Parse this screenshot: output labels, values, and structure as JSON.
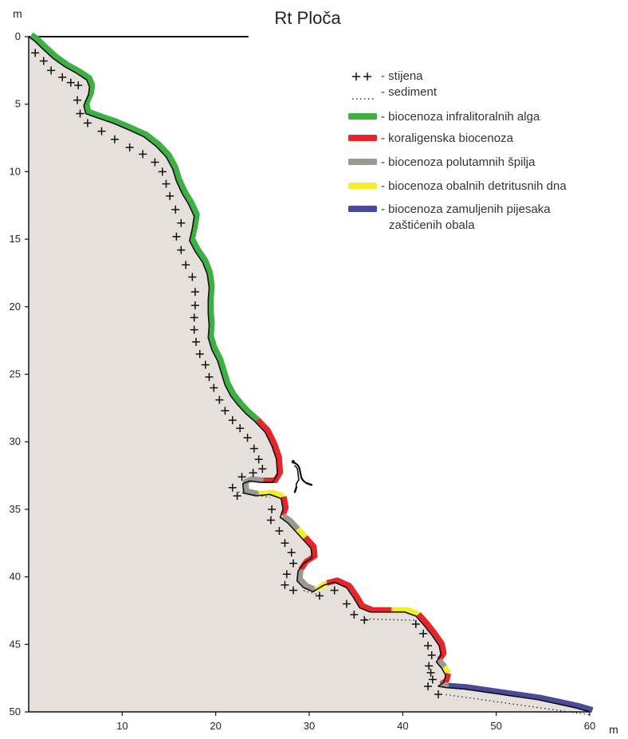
{
  "chart_data": {
    "type": "profile",
    "title": "Rt Ploča",
    "y_unit": "m",
    "x_unit": "m",
    "xlim": [
      0,
      60
    ],
    "ylim": [
      0,
      50
    ],
    "y_ticks": [
      0,
      5,
      10,
      15,
      20,
      25,
      30,
      35,
      40,
      45,
      50
    ],
    "x_ticks": [
      10,
      20,
      30,
      40,
      50,
      60
    ],
    "surface_line_x": [
      0,
      23.5
    ],
    "colors": {
      "seabed": "#e6e0dd",
      "green": "#3cb043",
      "red": "#e8262a",
      "grey": "#9a9a92",
      "yellow": "#f3ee2a",
      "blue": "#4a4a9a",
      "profile": "#111111"
    },
    "legend": [
      {
        "symbol": "rock",
        "label": "- stijena"
      },
      {
        "symbol": "sediment",
        "label": "- sediment"
      },
      {
        "symbol": "green",
        "label": "- biocenoza infralitoralnih alga"
      },
      {
        "symbol": "red",
        "label": "- koraligenska biocenoza"
      },
      {
        "symbol": "grey",
        "label": "- biocenoza polutamnih špilja"
      },
      {
        "symbol": "yellow",
        "label": "- biocenoza obalnih detritusnih dna"
      },
      {
        "symbol": "blue",
        "label": "- biocenoza zamuljenih pijesaka",
        "label2": "zaštićenih obala"
      }
    ],
    "profile": [
      [
        0,
        0
      ],
      [
        0.6,
        0.3
      ],
      [
        1.5,
        0.9
      ],
      [
        2.6,
        1.6
      ],
      [
        3.8,
        2.2
      ],
      [
        5.1,
        2.7
      ],
      [
        6.2,
        3.2
      ],
      [
        6.5,
        3.7
      ],
      [
        6.4,
        4.3
      ],
      [
        5.9,
        5.1
      ],
      [
        6.1,
        5.7
      ],
      [
        7.3,
        6.0
      ],
      [
        9.0,
        6.4
      ],
      [
        10.7,
        6.9
      ],
      [
        12.3,
        7.4
      ],
      [
        13.6,
        8.1
      ],
      [
        14.7,
        8.9
      ],
      [
        15.4,
        9.8
      ],
      [
        15.8,
        10.7
      ],
      [
        16.4,
        11.6
      ],
      [
        17.1,
        12.4
      ],
      [
        17.7,
        13.3
      ],
      [
        17.5,
        14.2
      ],
      [
        17.2,
        15.1
      ],
      [
        17.8,
        15.9
      ],
      [
        18.6,
        16.7
      ],
      [
        19.1,
        17.6
      ],
      [
        19.3,
        18.6
      ],
      [
        19.2,
        19.5
      ],
      [
        19.2,
        20.5
      ],
      [
        19.3,
        21.4
      ],
      [
        19.2,
        22.3
      ],
      [
        19.6,
        23.2
      ],
      [
        20.2,
        24.0
      ],
      [
        20.6,
        24.9
      ],
      [
        21.0,
        25.8
      ],
      [
        21.6,
        26.6
      ],
      [
        22.4,
        27.3
      ],
      [
        23.2,
        27.9
      ],
      [
        24.2,
        28.5
      ],
      [
        25.3,
        29.3
      ],
      [
        26.0,
        30.3
      ],
      [
        26.5,
        31.3
      ],
      [
        26.6,
        32.4
      ],
      [
        26.1,
        33.0
      ],
      [
        24.8,
        33.0
      ],
      [
        23.6,
        32.9
      ],
      [
        22.9,
        33.1
      ],
      [
        23.0,
        33.8
      ],
      [
        24.3,
        34.0
      ],
      [
        25.8,
        33.9
      ],
      [
        27.0,
        34.2
      ],
      [
        27.2,
        35.0
      ],
      [
        26.9,
        35.6
      ],
      [
        27.7,
        36.0
      ],
      [
        28.5,
        36.6
      ],
      [
        29.3,
        37.2
      ],
      [
        30.2,
        37.9
      ],
      [
        30.3,
        38.6
      ],
      [
        29.4,
        39.0
      ],
      [
        28.8,
        39.6
      ],
      [
        28.7,
        40.3
      ],
      [
        29.4,
        40.8
      ],
      [
        30.4,
        41.1
      ],
      [
        31.6,
        40.6
      ],
      [
        32.7,
        40.4
      ],
      [
        34.0,
        40.8
      ],
      [
        34.8,
        41.6
      ],
      [
        35.4,
        42.3
      ],
      [
        36.5,
        42.6
      ],
      [
        38.5,
        42.6
      ],
      [
        40.2,
        42.6
      ],
      [
        41.4,
        42.9
      ],
      [
        42.3,
        43.6
      ],
      [
        43.1,
        44.3
      ],
      [
        43.9,
        45.1
      ],
      [
        44.1,
        45.8
      ],
      [
        43.6,
        46.3
      ],
      [
        44.2,
        46.8
      ],
      [
        44.6,
        47.3
      ],
      [
        44.4,
        47.8
      ],
      [
        43.8,
        48.1
      ],
      [
        44.6,
        48.2
      ],
      [
        46.5,
        48.3
      ],
      [
        48.5,
        48.5
      ],
      [
        50.5,
        48.7
      ],
      [
        52.5,
        48.9
      ],
      [
        54.5,
        49.1
      ],
      [
        56.5,
        49.4
      ],
      [
        58.5,
        49.7
      ],
      [
        60,
        50
      ]
    ],
    "zones": [
      {
        "color": "green",
        "from": 0,
        "to": 39
      },
      {
        "color": "red",
        "from": 39,
        "to": 45
      },
      {
        "color": "grey",
        "from": 45,
        "to": 49
      },
      {
        "color": "yellow",
        "from": 49,
        "to": 51
      },
      {
        "color": "red",
        "from": 51,
        "to": 53
      },
      {
        "color": "grey",
        "from": 53,
        "to": 55
      },
      {
        "color": "yellow",
        "from": 55,
        "to": 56
      },
      {
        "color": "red",
        "from": 56,
        "to": 60
      },
      {
        "color": "grey",
        "from": 60,
        "to": 63
      },
      {
        "color": "yellow",
        "from": 63,
        "to": 64
      },
      {
        "color": "red",
        "from": 64,
        "to": 70
      },
      {
        "color": "yellow",
        "from": 70,
        "to": 72
      },
      {
        "color": "red",
        "from": 72,
        "to": 77
      },
      {
        "color": "grey",
        "from": 77,
        "to": 78
      },
      {
        "color": "yellow",
        "from": 78,
        "to": 79
      },
      {
        "color": "red",
        "from": 79,
        "to": 81
      },
      {
        "color": "grey",
        "from": 81,
        "to": 82
      },
      {
        "color": "blue",
        "from": 82,
        "to": 91
      }
    ],
    "rock_marks": [
      [
        0.7,
        1.2
      ],
      [
        1.6,
        1.8
      ],
      [
        2.4,
        2.5
      ],
      [
        3.6,
        3.0
      ],
      [
        4.5,
        3.4
      ],
      [
        5.3,
        3.6
      ],
      [
        5.2,
        4.7
      ],
      [
        5.5,
        5.7
      ],
      [
        6.3,
        6.4
      ],
      [
        7.8,
        7.0
      ],
      [
        9.2,
        7.6
      ],
      [
        10.8,
        8.2
      ],
      [
        12.2,
        8.7
      ],
      [
        13.5,
        9.3
      ],
      [
        14.3,
        10.0
      ],
      [
        14.7,
        10.9
      ],
      [
        15.1,
        11.8
      ],
      [
        15.7,
        12.8
      ],
      [
        16.3,
        13.8
      ],
      [
        15.8,
        14.8
      ],
      [
        16.3,
        15.8
      ],
      [
        16.8,
        16.9
      ],
      [
        17.5,
        17.8
      ],
      [
        17.8,
        18.9
      ],
      [
        17.8,
        19.9
      ],
      [
        17.7,
        20.8
      ],
      [
        17.7,
        21.7
      ],
      [
        17.9,
        22.6
      ],
      [
        18.3,
        23.5
      ],
      [
        18.9,
        24.3
      ],
      [
        19.3,
        25.2
      ],
      [
        19.8,
        26.0
      ],
      [
        20.4,
        26.9
      ],
      [
        21.0,
        27.7
      ],
      [
        21.8,
        28.4
      ],
      [
        22.6,
        29.0
      ],
      [
        23.4,
        29.7
      ],
      [
        24.1,
        30.5
      ],
      [
        24.6,
        31.3
      ],
      [
        25.0,
        32.0
      ],
      [
        24.0,
        32.3
      ],
      [
        22.8,
        32.6
      ],
      [
        21.8,
        33.4
      ],
      [
        22.3,
        34.0
      ],
      [
        26.0,
        35.0
      ],
      [
        25.9,
        35.8
      ],
      [
        26.8,
        36.6
      ],
      [
        27.4,
        37.5
      ],
      [
        28.1,
        38.2
      ],
      [
        28.3,
        39.0
      ],
      [
        27.6,
        39.8
      ],
      [
        27.4,
        40.6
      ],
      [
        28.3,
        41.0
      ],
      [
        31.1,
        41.4
      ],
      [
        32.7,
        41.0
      ],
      [
        34.0,
        42.0
      ],
      [
        34.8,
        42.8
      ],
      [
        35.9,
        43.2
      ],
      [
        41.4,
        43.5
      ],
      [
        42.2,
        44.2
      ],
      [
        42.7,
        45.1
      ],
      [
        43.1,
        45.8
      ],
      [
        42.8,
        46.6
      ],
      [
        43.0,
        47.1
      ],
      [
        43.2,
        47.6
      ],
      [
        42.7,
        48.1
      ],
      [
        43.8,
        48.7
      ]
    ],
    "sediment_segments": [
      [
        [
          22.4,
          33.6
        ],
        [
          25.8,
          34.0
        ]
      ],
      [
        [
          29.4,
          40.9
        ],
        [
          31.5,
          41.3
        ]
      ],
      [
        [
          36.0,
          43.0
        ],
        [
          41.3,
          43.1
        ]
      ],
      [
        [
          44.6,
          48.6
        ],
        [
          60,
          50.1
        ]
      ]
    ],
    "diver": [
      28.8,
      32.6
    ]
  }
}
